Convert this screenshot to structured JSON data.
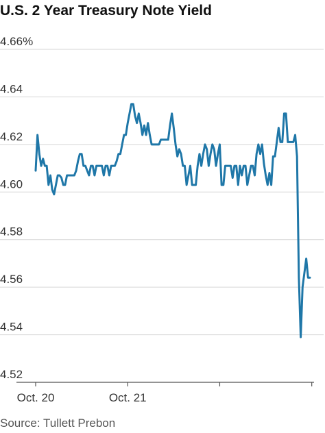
{
  "chart_data": {
    "type": "line",
    "title": "U.S. 2 Year Treasury Note Yield",
    "source": "Source: Tullett Prebon",
    "xlabel": "",
    "ylabel": "",
    "ylim": [
      4.52,
      4.66
    ],
    "y_ticks": [
      {
        "value": 4.66,
        "label": "4.66%"
      },
      {
        "value": 4.64,
        "label": "4.64"
      },
      {
        "value": 4.62,
        "label": "4.62"
      },
      {
        "value": 4.6,
        "label": "4.60"
      },
      {
        "value": 4.58,
        "label": "4.58"
      },
      {
        "value": 4.56,
        "label": "4.56"
      },
      {
        "value": 4.54,
        "label": "4.54"
      },
      {
        "value": 4.52,
        "label": "4.52"
      }
    ],
    "x_tick_labels": [
      {
        "index": 0,
        "label": "Oct. 20"
      },
      {
        "index": 50,
        "label": "Oct. 21"
      }
    ],
    "x_tick_marks": [
      0,
      50,
      100,
      150
    ],
    "grid": "horizontal",
    "line_color": "#1f77a8",
    "series": [
      {
        "name": "",
        "values": [
          4.609,
          4.624,
          4.616,
          4.611,
          4.614,
          4.611,
          4.611,
          4.603,
          4.607,
          4.601,
          4.599,
          4.603,
          4.607,
          4.607,
          4.606,
          4.603,
          4.603,
          4.607,
          4.607,
          4.607,
          4.607,
          4.607,
          4.609,
          4.613,
          4.616,
          4.616,
          4.611,
          4.611,
          4.609,
          4.607,
          4.611,
          4.611,
          4.607,
          4.611,
          4.611,
          4.611,
          4.611,
          4.607,
          4.611,
          4.611,
          4.607,
          4.611,
          4.611,
          4.611,
          4.613,
          4.616,
          4.616,
          4.62,
          4.624,
          4.624,
          4.629,
          4.633,
          4.637,
          4.637,
          4.632,
          4.629,
          4.633,
          4.629,
          4.624,
          4.628,
          4.624,
          4.629,
          4.624,
          4.62,
          4.62,
          4.62,
          4.62,
          4.62,
          4.622,
          4.622,
          4.622,
          4.622,
          4.622,
          4.628,
          4.633,
          4.627,
          4.62,
          4.615,
          4.618,
          4.616,
          4.611,
          4.611,
          4.603,
          4.607,
          4.611,
          4.603,
          4.603,
          4.603,
          4.611,
          4.616,
          4.611,
          4.616,
          4.62,
          4.618,
          4.611,
          4.616,
          4.62,
          4.618,
          4.611,
          4.616,
          4.62,
          4.603,
          4.603,
          4.611,
          4.611,
          4.611,
          4.611,
          4.606,
          4.611,
          4.611,
          4.603,
          4.611,
          4.607,
          4.611,
          4.611,
          4.603,
          4.607,
          4.611,
          4.611,
          4.607,
          4.616,
          4.62,
          4.616,
          4.62,
          4.612,
          4.607,
          4.603,
          4.608,
          4.603,
          4.615,
          4.615,
          4.621,
          4.627,
          4.621,
          4.621,
          4.633,
          4.633,
          4.621,
          4.621,
          4.621,
          4.621,
          4.624,
          4.615,
          4.564,
          4.539,
          4.56,
          4.566,
          4.572,
          4.564,
          4.564
        ]
      }
    ]
  }
}
